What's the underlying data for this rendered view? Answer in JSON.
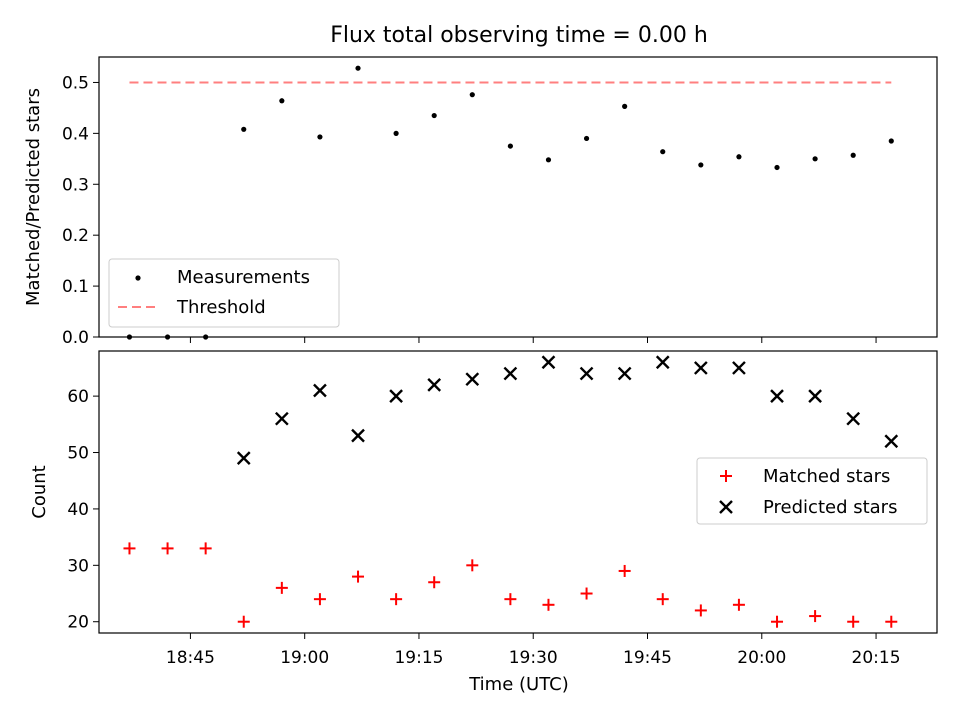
{
  "chart_data": [
    {
      "type": "scatter",
      "title": "Flux total observing time = 0.00 h",
      "xlabel": "",
      "ylabel": "Matched/Predicted stars",
      "ylim": [
        0.0,
        0.55
      ],
      "yticks": [
        "0.0",
        "0.1",
        "0.2",
        "0.3",
        "0.4",
        "0.5"
      ],
      "legend_position": "lower-left",
      "series": [
        {
          "name": "Measurements",
          "color": "#000000",
          "marker": "dot",
          "x": [
            "18:37",
            "18:42",
            "18:47",
            "18:52",
            "18:57",
            "19:02",
            "19:07",
            "19:12",
            "19:17",
            "19:22",
            "19:27",
            "19:32",
            "19:37",
            "19:42",
            "19:47",
            "19:52",
            "19:57",
            "20:02",
            "20:07",
            "20:12",
            "20:17"
          ],
          "y": [
            0.0,
            0.0,
            0.0,
            0.408,
            0.464,
            0.393,
            0.528,
            0.4,
            0.435,
            0.476,
            0.375,
            0.348,
            0.39,
            0.453,
            0.364,
            0.338,
            0.354,
            0.333,
            0.35,
            0.357,
            0.385
          ]
        },
        {
          "name": "Threshold",
          "color": "#ff7f7f",
          "marker": "dashed-line",
          "x": [
            "18:37",
            "20:17"
          ],
          "y": [
            0.5,
            0.5
          ]
        }
      ]
    },
    {
      "type": "scatter",
      "title": "",
      "xlabel": "Time (UTC)",
      "ylabel": "Count",
      "ylim": [
        18,
        68
      ],
      "yticks": [
        "20",
        "30",
        "40",
        "50",
        "60"
      ],
      "xticks": [
        "18:45",
        "19:00",
        "19:15",
        "19:30",
        "19:45",
        "20:00",
        "20:15"
      ],
      "xlim": [
        "18:33",
        "20:23"
      ],
      "legend_position": "right",
      "series": [
        {
          "name": "Matched stars",
          "color": "#ff0000",
          "marker": "plus",
          "x": [
            "18:37",
            "18:42",
            "18:47",
            "18:52",
            "18:57",
            "19:02",
            "19:07",
            "19:12",
            "19:17",
            "19:22",
            "19:27",
            "19:32",
            "19:37",
            "19:42",
            "19:47",
            "19:52",
            "19:57",
            "20:02",
            "20:07",
            "20:12",
            "20:17"
          ],
          "y": [
            33,
            33,
            33,
            20,
            26,
            24,
            28,
            24,
            27,
            30,
            24,
            23,
            25,
            29,
            24,
            22,
            23,
            20,
            21,
            20,
            20
          ]
        },
        {
          "name": "Predicted stars",
          "color": "#000000",
          "marker": "x",
          "x": [
            "18:52",
            "18:57",
            "19:02",
            "19:07",
            "19:12",
            "19:17",
            "19:22",
            "19:27",
            "19:32",
            "19:37",
            "19:42",
            "19:47",
            "19:52",
            "19:57",
            "20:02",
            "20:07",
            "20:12",
            "20:17"
          ],
          "y": [
            49,
            56,
            61,
            53,
            60,
            62,
            63,
            64,
            66,
            64,
            64,
            66,
            65,
            65,
            60,
            60,
            56,
            52
          ]
        }
      ]
    }
  ]
}
